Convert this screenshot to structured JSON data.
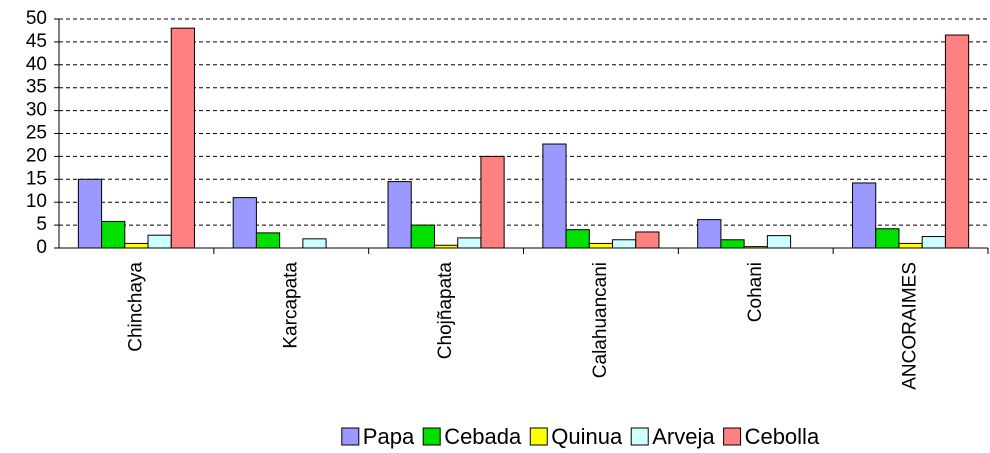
{
  "chart_data": {
    "type": "bar",
    "categories": [
      "Chinchaya",
      "Karcapata",
      "Chojñapata",
      "Calahuancani",
      "Cohani",
      "ANCORAIMES"
    ],
    "series": [
      {
        "name": "Papa",
        "color": "#9999ff",
        "values": [
          15,
          11,
          14.5,
          22.7,
          6.2,
          14.2
        ]
      },
      {
        "name": "Cebada",
        "color": "#00e000",
        "values": [
          5.8,
          3.3,
          5,
          4,
          1.8,
          4.2
        ]
      },
      {
        "name": "Quinua",
        "color": "#ffff00",
        "values": [
          1,
          0,
          0.6,
          1,
          0.3,
          1
        ]
      },
      {
        "name": "Arveja",
        "color": "#ccffff",
        "values": [
          2.8,
          2,
          2.2,
          1.8,
          2.7,
          2.5
        ]
      },
      {
        "name": "Cebolla",
        "color": "#ff8080",
        "values": [
          48,
          null,
          20,
          3.5,
          null,
          46.5
        ]
      }
    ],
    "ylim": [
      0,
      50
    ],
    "yticks": [
      0,
      5,
      10,
      15,
      20,
      25,
      30,
      35,
      40,
      45,
      50
    ],
    "grid": true,
    "legend": "bottom"
  }
}
